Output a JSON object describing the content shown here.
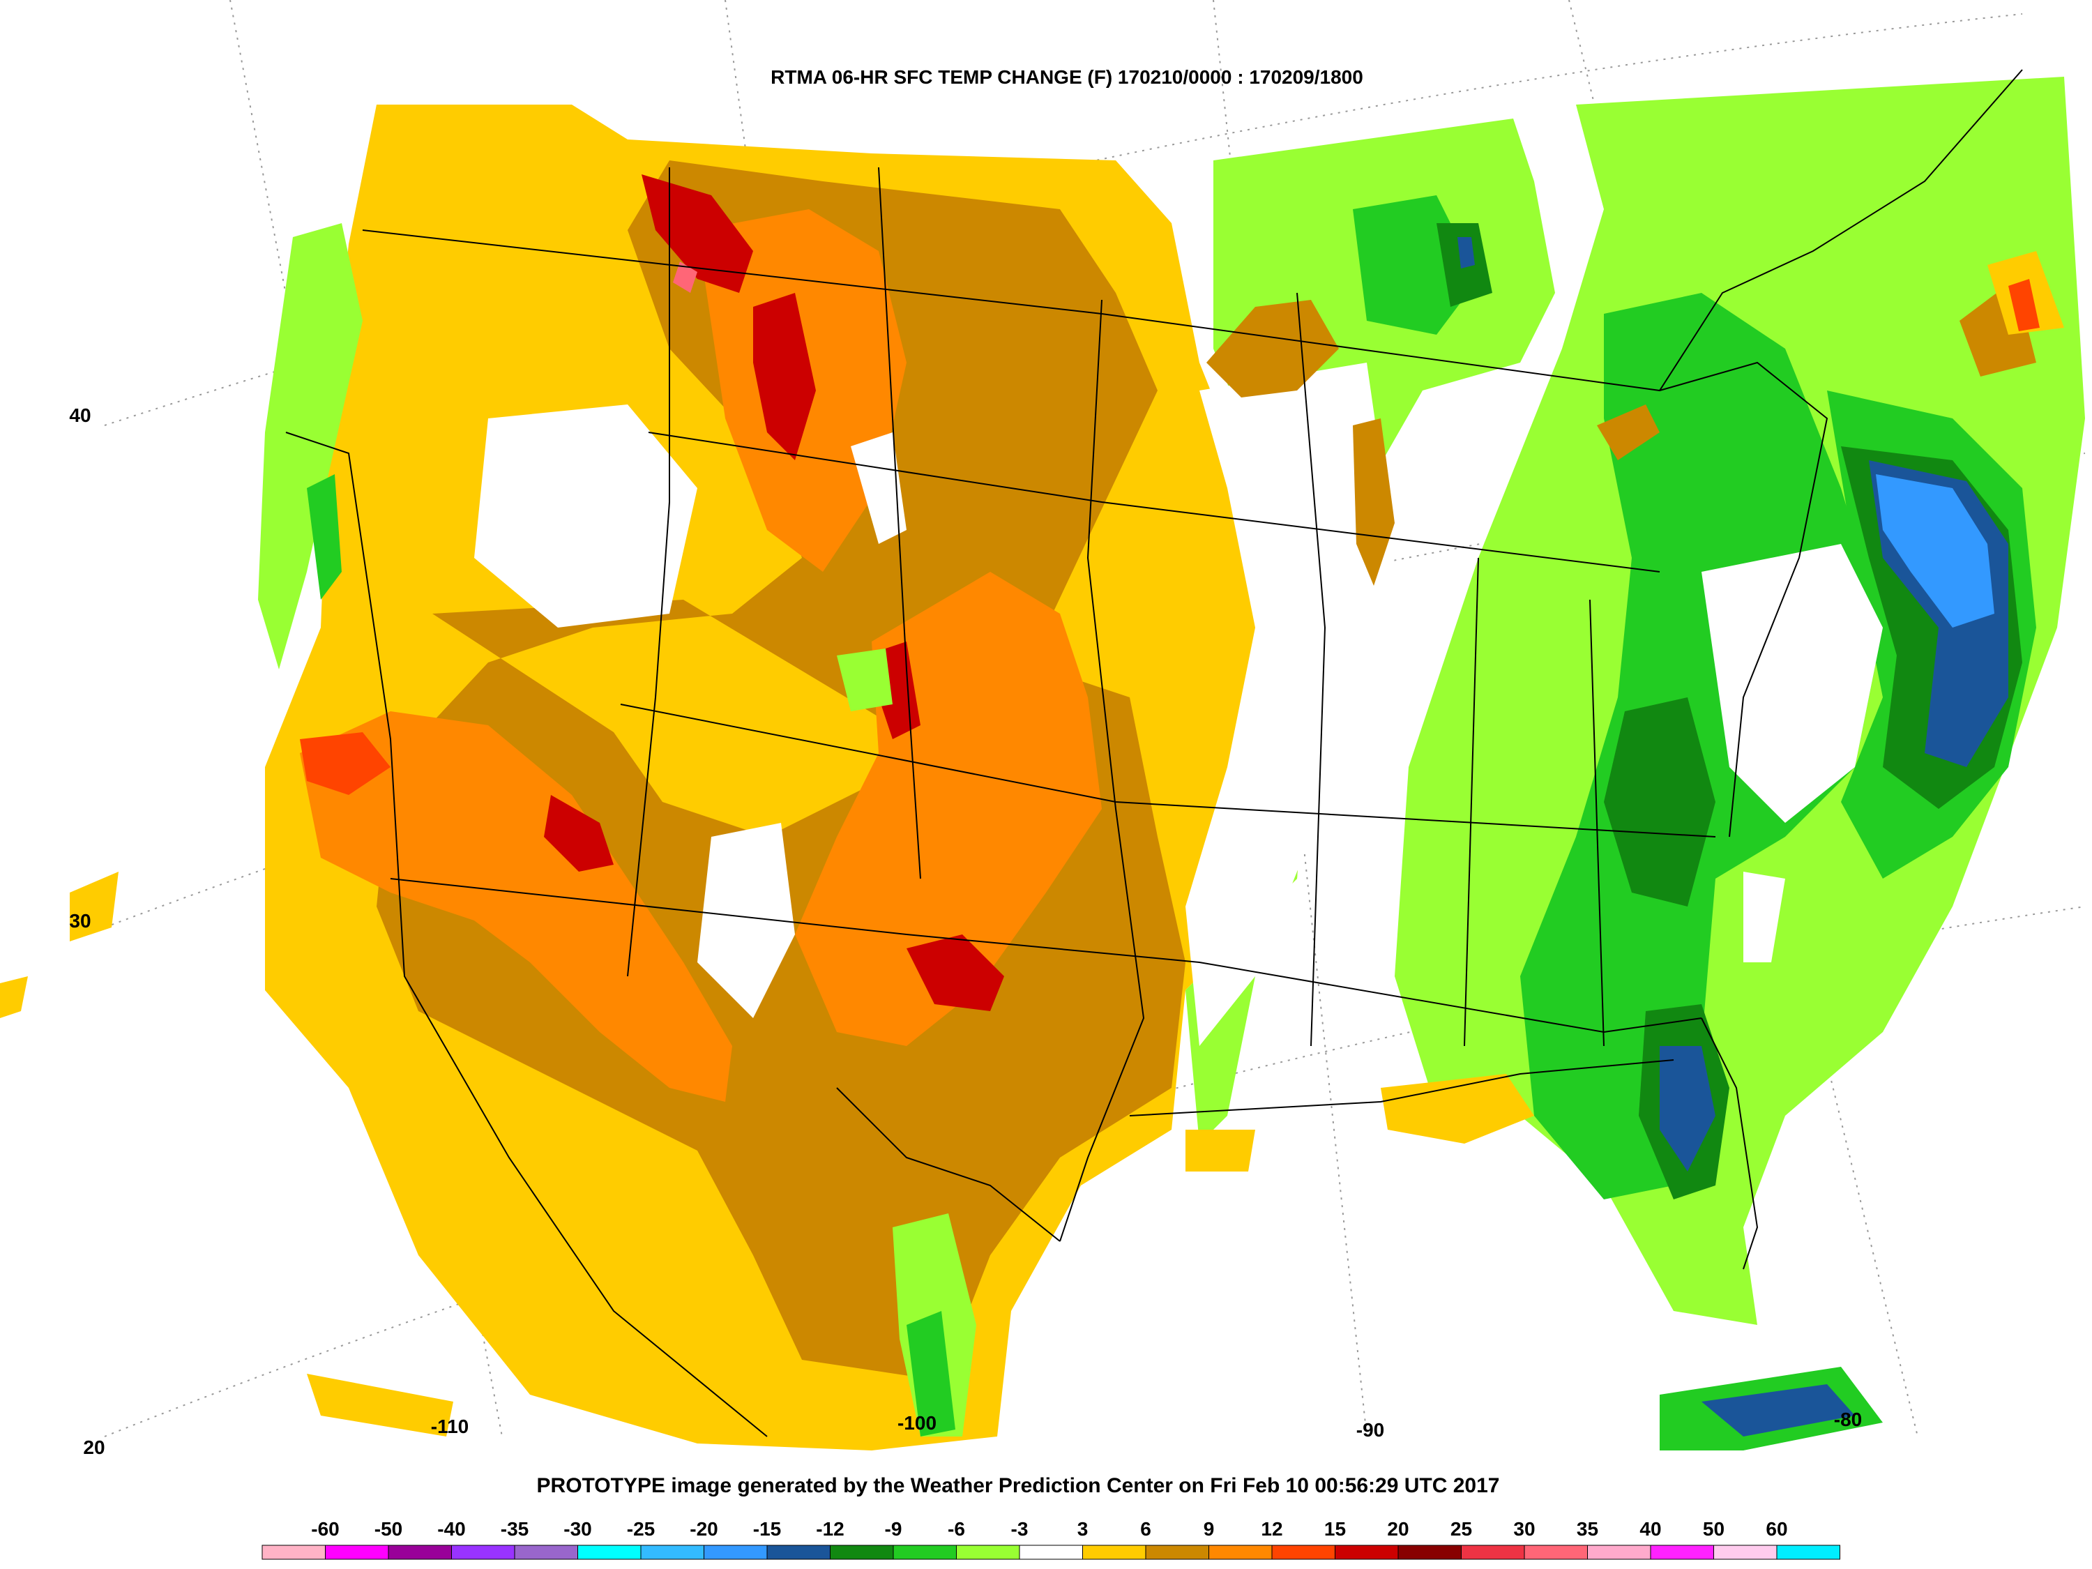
{
  "title": "RTMA 06-HR SFC TEMP CHANGE (F) 170210/0000 : 170209/1800",
  "footer": "PROTOTYPE image generated by the Weather Prediction Center on Fri Feb 10 00:56:29 UTC 2017",
  "lat_labels": [
    "40",
    "30",
    "20"
  ],
  "lon_labels": [
    "-110",
    "-100",
    "-90",
    "-80"
  ],
  "colorbar": {
    "labels": [
      "-60",
      "-50",
      "-40",
      "-35",
      "-30",
      "-25",
      "-20",
      "-15",
      "-12",
      "-9",
      "-6",
      "-3",
      "3",
      "6",
      "9",
      "12",
      "15",
      "20",
      "25",
      "30",
      "35",
      "40",
      "50",
      "60"
    ],
    "colors": [
      "#ffb3c6",
      "#ff00ff",
      "#990099",
      "#9933ff",
      "#9966cc",
      "#00ffff",
      "#33bbff",
      "#3399ff",
      "#1a5599",
      "#118811",
      "#22cc22",
      "#99ff33",
      "#ffffff",
      "#ffcc00",
      "#cc8800",
      "#ff8800",
      "#ff4400",
      "#cc0000",
      "#880000",
      "#ee3344",
      "#ff6677",
      "#ffaacc",
      "#ff22ff",
      "#ffccee",
      "#00eeff"
    ]
  },
  "colors": {
    "strong_warming": "#cc0000",
    "warming": "#ff8800",
    "mild_warming": "#cc8800",
    "slight_warming": "#ffcc00",
    "slight_cooling": "#99ff33",
    "cooling": "#22cc22",
    "strong_cooling": "#118811",
    "stronger_cooling": "#1a5599",
    "strongest_cooling": "#3399ff"
  }
}
